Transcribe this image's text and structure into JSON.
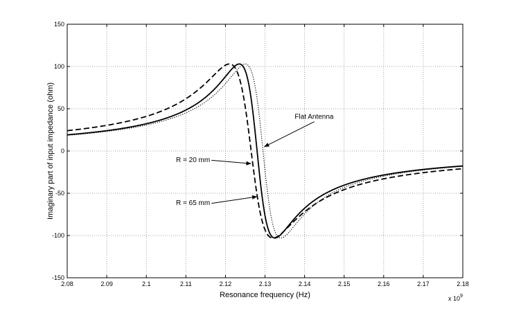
{
  "chart_data": {
    "type": "line",
    "title": "",
    "xlabel": "Resonance frequency (Hz)",
    "ylabel": "Imaginary part of input impedance (ohm)",
    "x_multiplier_label": "x 10",
    "x_multiplier_exponent": "9",
    "xlim": [
      2.08,
      2.18
    ],
    "ylim": [
      -150,
      150
    ],
    "grid": true,
    "x_ticks": [
      "2.08",
      "2.09",
      "2.1",
      "2.11",
      "2.12",
      "2.13",
      "2.14",
      "2.15",
      "2.16",
      "2.17",
      "2.18"
    ],
    "y_ticks": [
      "-150",
      "-100",
      "-50",
      "0",
      "50",
      "100",
      "150"
    ],
    "series": [
      {
        "name": "R = 20 mm",
        "style": "dashed",
        "f0": 2.1265,
        "half_width": 0.0055,
        "peak": 103
      },
      {
        "name": "R = 65 mm",
        "style": "solid",
        "f0": 2.128,
        "half_width": 0.0045,
        "peak": 103
      },
      {
        "name": "Flat Antenna",
        "style": "dotted",
        "f0": 2.1295,
        "half_width": 0.0045,
        "peak": 103
      }
    ],
    "annotations": [
      {
        "text": "Flat Antenna",
        "series": "Flat Antenna",
        "text_x": 2.1375,
        "text_y": 38,
        "arrow_x": 2.1298,
        "arrow_y": 5
      },
      {
        "text": "R = 20 mm",
        "series": "R = 20 mm",
        "text_x": 2.1075,
        "text_y": -13,
        "arrow_x": 2.1265,
        "arrow_y": -15
      },
      {
        "text": "R = 65 mm",
        "series": "R = 65 mm",
        "text_x": 2.1075,
        "text_y": -64,
        "arrow_x": 2.128,
        "arrow_y": -54
      }
    ]
  }
}
